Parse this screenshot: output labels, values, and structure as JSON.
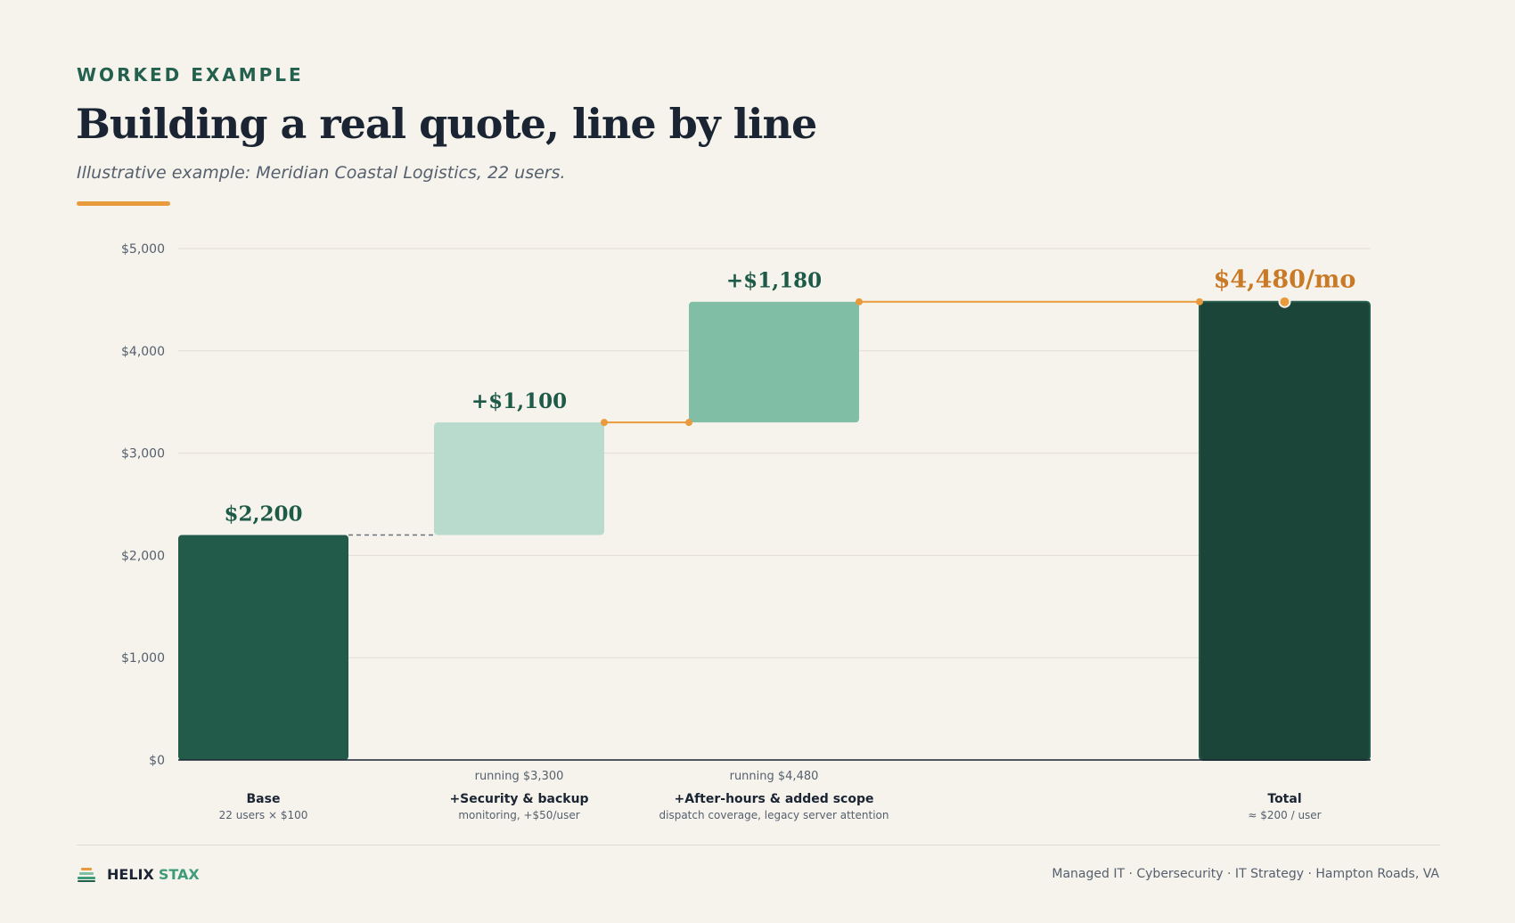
{
  "header": {
    "eyebrow": "WORKED EXAMPLE",
    "title": "Building a real quote, line by line",
    "subtitle": "Illustrative example: Meridian Coastal Logistics, 22 users."
  },
  "colors": {
    "background": "#f6f3ec",
    "base_bar": "#235b4a",
    "security_bar": "#b8dbcd",
    "afterhours_bar": "#80bea6",
    "total_bar": "#1c4539",
    "connector": "#e89a3c",
    "total_label": "#c97a26",
    "value_label": "#1e5a48"
  },
  "chart_data": {
    "type": "waterfall",
    "y_unit": "USD per month",
    "ylim": [
      0,
      5000
    ],
    "y_ticks": [
      "$0",
      "$1,000",
      "$2,000",
      "$3,000",
      "$4,000",
      "$5,000"
    ],
    "y_tick_values": [
      0,
      1000,
      2000,
      3000,
      4000,
      5000
    ],
    "grid": true,
    "steps": [
      {
        "name": "Base",
        "detail": "22 users × $100",
        "kind": "base",
        "start": 0,
        "end": 2200,
        "value_label": "$2,200",
        "running_label": ""
      },
      {
        "name": "+Security & backup",
        "detail": "monitoring, +$50/user",
        "kind": "increment",
        "start": 2200,
        "end": 3300,
        "value_label": "+$1,100",
        "running_label": "running $3,300"
      },
      {
        "name": "+After-hours & added scope",
        "detail": "dispatch coverage, legacy server attention",
        "kind": "increment",
        "start": 3300,
        "end": 4480,
        "value_label": "+$1,180",
        "running_label": "running $4,480"
      },
      {
        "name": "Total",
        "detail": "≈ $200 / user",
        "kind": "total",
        "start": 0,
        "end": 4480,
        "value_label": "$4,480/mo",
        "running_label": ""
      }
    ]
  },
  "footer": {
    "brand_part1": "HELIX",
    "brand_part2": "STAX",
    "tagline": "Managed IT · Cybersecurity · IT Strategy · Hampton Roads, VA"
  }
}
